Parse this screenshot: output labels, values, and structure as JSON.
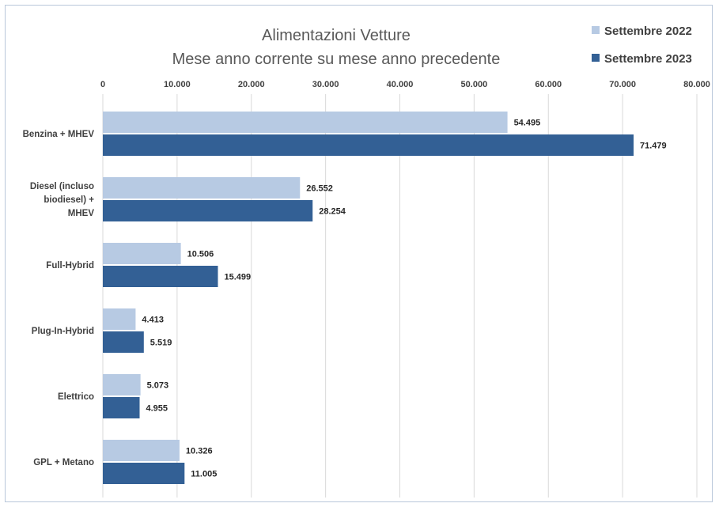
{
  "chart_data": {
    "type": "bar",
    "orientation": "horizontal",
    "title": "Alimentazioni Vetture",
    "subtitle": "Mese anno corrente su mese anno precedente",
    "categories": [
      "Benzina + MHEV",
      "Diesel (incluso biodiesel) + MHEV",
      "Full-Hybrid",
      "Plug-In-Hybrid",
      "Elettrico",
      "GPL + Metano"
    ],
    "category_labels": [
      [
        "Benzina + MHEV"
      ],
      [
        "Diesel (incluso",
        "biodiesel) +",
        "MHEV"
      ],
      [
        "Full-Hybrid"
      ],
      [
        "Plug-In-Hybrid"
      ],
      [
        "Elettrico"
      ],
      [
        "GPL + Metano"
      ]
    ],
    "series": [
      {
        "name": "Settembre 2022",
        "color": "#b7cae3",
        "values": [
          54495,
          26552,
          10506,
          4413,
          5073,
          10326
        ],
        "labels": [
          "54.495",
          "26.552",
          "10.506",
          "4.413",
          "5.073",
          "10.326"
        ]
      },
      {
        "name": "Settembre 2023",
        "color": "#336095",
        "values": [
          71479,
          28254,
          15499,
          5519,
          4955,
          11005
        ],
        "labels": [
          "71.479",
          "28.254",
          "15.499",
          "5.519",
          "4.955",
          "11.005"
        ]
      }
    ],
    "xlim": [
      0,
      80000
    ],
    "x_ticks": [
      0,
      10000,
      20000,
      30000,
      40000,
      50000,
      60000,
      70000,
      80000
    ],
    "x_tick_labels": [
      "0",
      "10.000",
      "20.000",
      "30.000",
      "40.000",
      "50.000",
      "60.000",
      "70.000",
      "80.000"
    ],
    "axis_position": "top",
    "grid": true,
    "legend_position": "top-right"
  }
}
